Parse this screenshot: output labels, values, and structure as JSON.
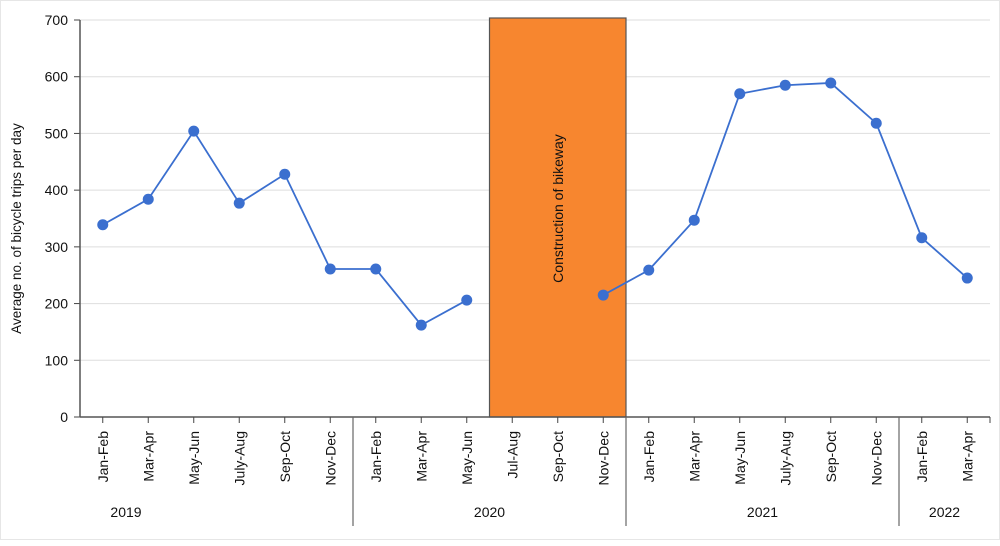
{
  "chart_data": {
    "type": "line",
    "title": "",
    "xlabel": "",
    "ylabel": "Average no. of bicycle trips per day",
    "ylim": [
      0,
      700
    ],
    "yticks": [
      0,
      100,
      200,
      300,
      400,
      500,
      600,
      700
    ],
    "grid": true,
    "legend": null,
    "categories": [
      "Jan-Feb",
      "Mar-Apr",
      "May-Jun",
      "July-Aug",
      "Sep-Oct",
      "Nov-Dec",
      "Jan-Feb",
      "Mar-Apr",
      "May-Jun",
      "Jul-Aug",
      "Sep-Oct",
      "Nov-Dec",
      "Jan-Feb",
      "Mar-Apr",
      "May-Jun",
      "July-Aug",
      "Sep-Oct",
      "Nov-Dec",
      "Jan-Feb",
      "Mar-Apr"
    ],
    "groups": [
      {
        "label": "2019",
        "start": 0,
        "end": 5
      },
      {
        "label": "2020",
        "start": 6,
        "end": 11
      },
      {
        "label": "2021",
        "start": 12,
        "end": 17
      },
      {
        "label": "2022",
        "start": 18,
        "end": 19
      }
    ],
    "series": [
      {
        "name": "Average bicycle trips per day",
        "color": "#3b6fcf",
        "values": [
          339,
          384,
          504,
          377,
          428,
          261,
          261,
          162,
          206,
          null,
          null,
          215,
          259,
          347,
          570,
          585,
          589,
          518,
          316,
          245
        ]
      }
    ],
    "annotations": [
      {
        "type": "shaded-box",
        "label": "Construction of bikeway",
        "from_index": 8.5,
        "to_index": 11.5,
        "color": "#f7862f"
      }
    ]
  }
}
